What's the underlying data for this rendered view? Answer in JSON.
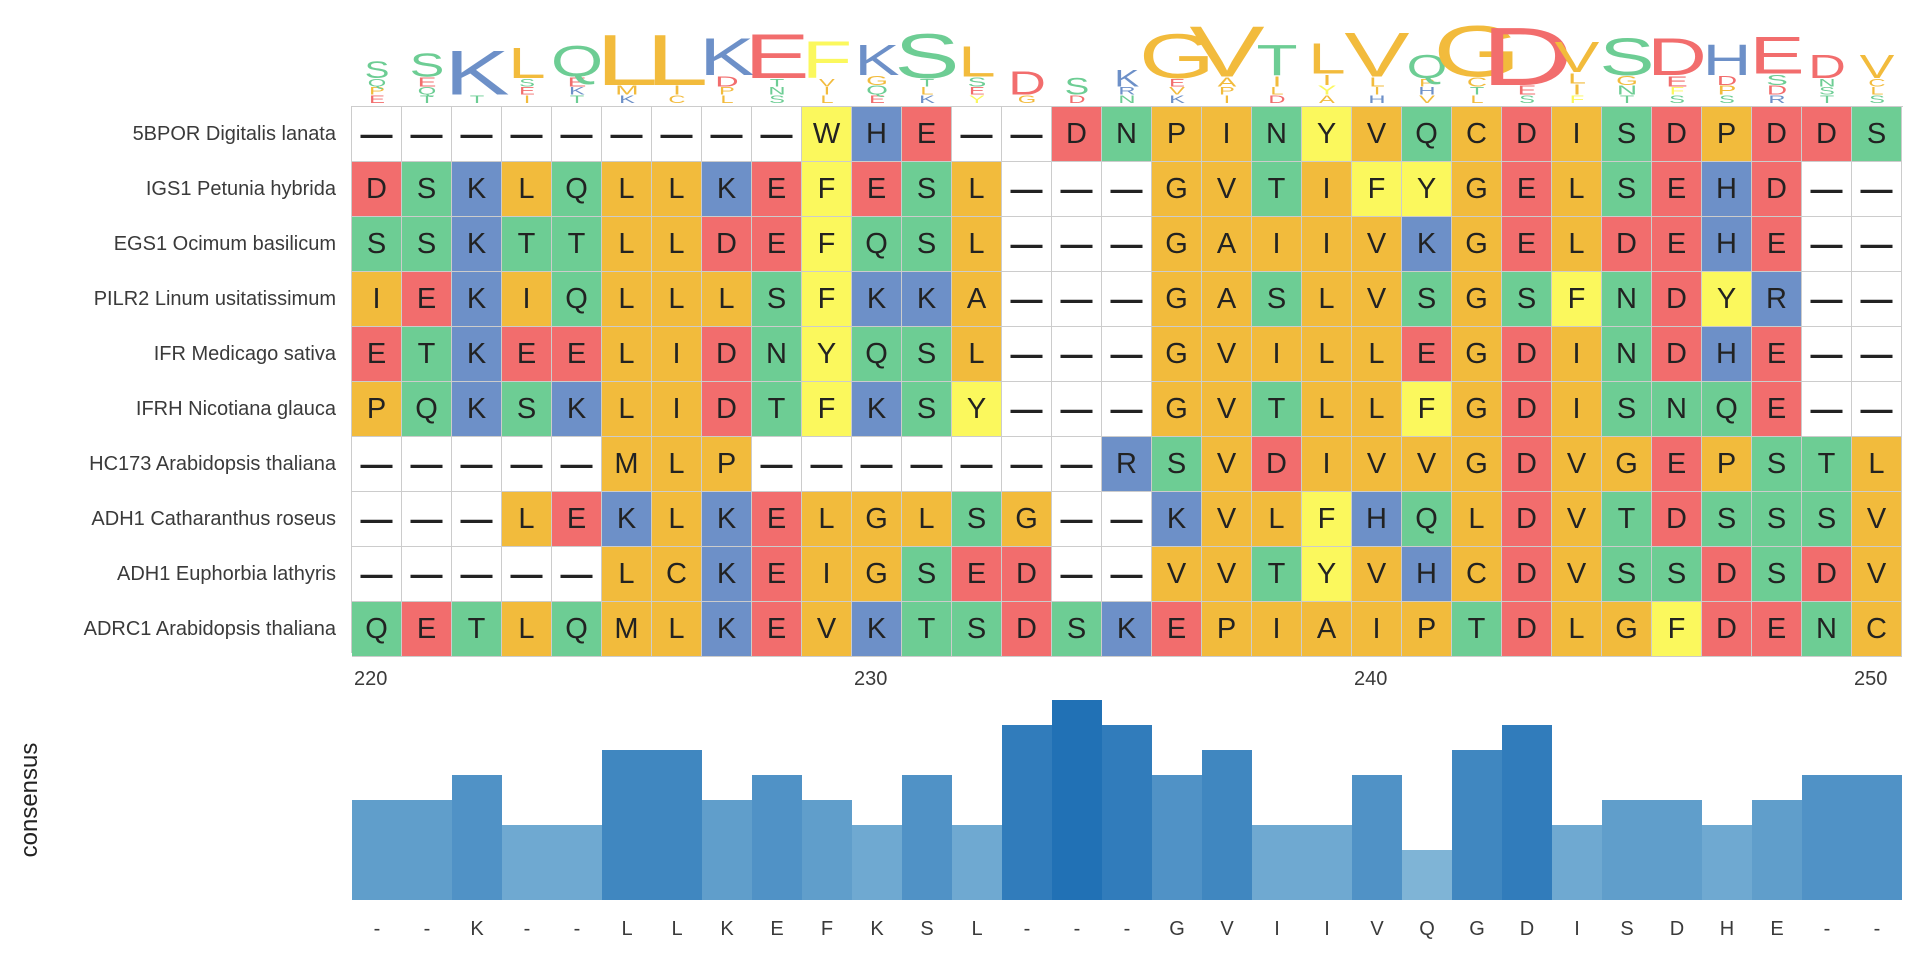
{
  "chart_data": {
    "type": "heatmap",
    "subtype": "sequence-alignment",
    "positions": {
      "start": 220,
      "end": 250,
      "tick_labels": [
        "220",
        "230",
        "240",
        "250"
      ]
    },
    "sequences": [
      {
        "name": "5BPOR Digitalis lanata",
        "residues": "---------WHE--DNPINYVQCDISDPDDS"
      },
      {
        "name": "IGS1 Petunia hybrida",
        "residues": "DSKLQLLKEFESL---GVTIFYGELSEHD--"
      },
      {
        "name": "EGS1 Ocimum basilicum",
        "residues": "SSKTTLLDEFQSL---GAIIVKGELDEHE--"
      },
      {
        "name": "PILR2 Linum usitatissimum",
        "residues": "IEKIQLLLSFKKA---GASLVSGSFNDYR--"
      },
      {
        "name": "IFR Medicago sativa",
        "residues": "ETKEELIDNYQSL---GVILLEGDINDHE--"
      },
      {
        "name": "IFRH Nicotiana glauca",
        "residues": "PQKSKLIDTFKSY---GVTLLFGDISNQE--"
      },
      {
        "name": "HC173 Arabidopsis thaliana",
        "residues": "-----MLP-------RSVDIVVGDVGEPSTL"
      },
      {
        "name": "ADH1 Catharanthus roseus",
        "residues": "---LEKLKELGLSG--KVLFHQLDVTDSSSV"
      },
      {
        "name": "ADH1 Euphorbia lathyris",
        "residues": "-----LCKEIGSED--VVTYVHCDVSSDSDV"
      },
      {
        "name": "ADRC1 Arabidopsis thaliana",
        "residues": "QETLQMLKEVKTSDSKEPIAIPTDLGFDENC"
      }
    ],
    "consensus": {
      "label": "consensus",
      "letters": [
        "-",
        "-",
        "K",
        "-",
        "-",
        "L",
        "L",
        "K",
        "E",
        "F",
        "K",
        "S",
        "L",
        "-",
        "-",
        "-",
        "G",
        "V",
        "I",
        "I",
        "V",
        "Q",
        "G",
        "D",
        "I",
        "S",
        "D",
        "H",
        "E",
        "-",
        "-"
      ],
      "values": [
        4,
        4,
        5,
        3,
        3,
        6,
        6,
        4,
        5,
        4,
        3,
        5,
        3,
        7,
        8,
        7,
        5,
        6,
        3,
        3,
        5,
        2,
        6,
        7,
        3,
        4,
        4,
        3,
        4,
        5,
        5
      ],
      "ylim": [
        0,
        8
      ]
    },
    "logo_top": [
      "S",
      "S",
      "K",
      "L",
      "Q",
      "L",
      "L",
      "K",
      "E",
      "F",
      "K",
      "S",
      "L",
      "D",
      "S",
      "K",
      "G",
      "V",
      "T",
      "L",
      "V",
      "Q",
      "G",
      "D",
      "V",
      "S",
      "D",
      "H",
      "E",
      "D",
      "V"
    ],
    "residue_colors": {
      "hydrophobic": "#f2bb3c",
      "aromatic": "#fbf85d",
      "acidic": "#f26d6d",
      "basic": "#6d90c8",
      "polar": "#6dcd94",
      "gap": "#ffffff",
      "hydrophobic_residues": "AILMVPGC",
      "aromatic_residues": "FWY",
      "acidic_residues": "DE",
      "basic_residues": "KRH",
      "polar_residues": "STNQ"
    },
    "consensus_color": "#2a7ab9"
  }
}
